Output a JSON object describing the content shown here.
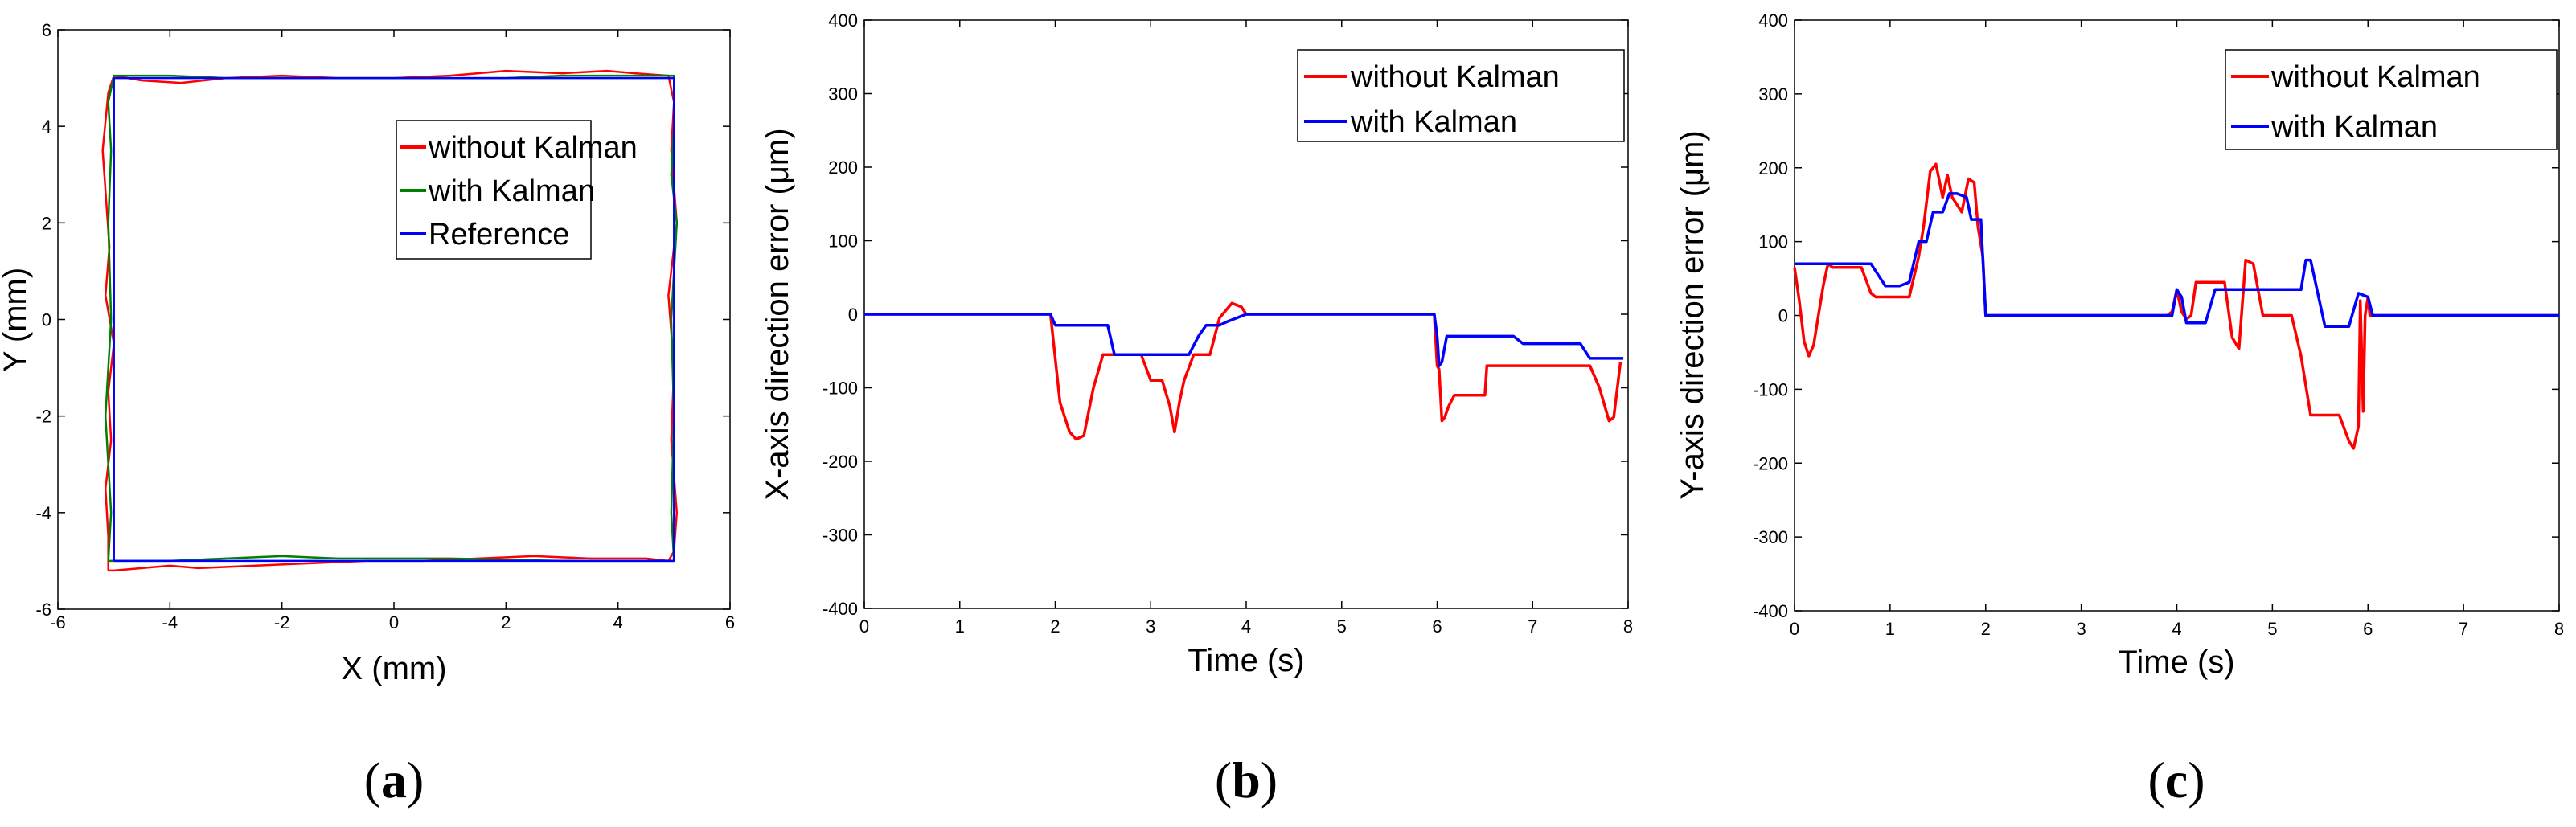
{
  "chart_data": [
    {
      "id": "a",
      "type": "line",
      "caption": "a",
      "xlabel": "X (mm)",
      "ylabel": "Y (mm)",
      "xlim": [
        -6,
        6
      ],
      "ylim": [
        -6,
        6
      ],
      "xticks": [
        -6,
        -4,
        -2,
        0,
        2,
        4,
        6
      ],
      "yticks": [
        -6,
        -4,
        -2,
        0,
        2,
        4,
        6
      ],
      "legend_position": "top-right",
      "series": [
        {
          "name": "without Kalman",
          "color": "#ff0000",
          "x": [
            -5.1,
            -5.1,
            -5.15,
            -5.05,
            -5.1,
            -5.0,
            -5.15,
            -5.08,
            -5.2,
            -5.1,
            -5.0,
            -4.5,
            -3.8,
            -3.0,
            -2.0,
            -1.0,
            0.0,
            1.0,
            2.0,
            3.0,
            3.8,
            4.3,
            4.9,
            5.0,
            4.95,
            5.05,
            4.9,
            5.0,
            4.95,
            5.05,
            5.0,
            4.9,
            4.5,
            3.5,
            2.5,
            1.5,
            0.5,
            -0.5,
            -1.5,
            -2.5,
            -3.5,
            -4.0,
            -4.5,
            -5.0,
            -5.1
          ],
          "y": [
            -5.2,
            -4.5,
            -3.5,
            -2.5,
            -1.5,
            -0.5,
            0.5,
            1.5,
            3.5,
            4.7,
            5.05,
            4.95,
            4.9,
            5.0,
            5.05,
            5.0,
            5.0,
            5.05,
            5.15,
            5.1,
            5.15,
            5.1,
            5.05,
            4.5,
            3.5,
            2.0,
            0.5,
            -1.0,
            -2.5,
            -4.0,
            -4.8,
            -5.0,
            -4.95,
            -4.95,
            -4.9,
            -4.95,
            -5.0,
            -5.0,
            -5.05,
            -5.1,
            -5.15,
            -5.1,
            -5.15,
            -5.2,
            -5.2
          ]
        },
        {
          "name": "with Kalman",
          "color": "#008000",
          "x": [
            -5.1,
            -5.05,
            -5.1,
            -5.15,
            -5.05,
            -5.1,
            -5.05,
            -5.1,
            -5.0,
            -4.0,
            -3.0,
            -2.0,
            0.0,
            2.0,
            3.0,
            4.0,
            5.0,
            5.0,
            4.95,
            5.05,
            4.95,
            5.0,
            4.95,
            5.0,
            4.0,
            3.0,
            1.0,
            -1.0,
            -2.0,
            -3.0,
            -4.0,
            -5.0,
            -5.1
          ],
          "y": [
            -5.0,
            -4.0,
            -3.0,
            -2.0,
            0.0,
            2.0,
            3.5,
            4.5,
            5.05,
            5.05,
            5.0,
            5.0,
            5.0,
            5.0,
            5.05,
            5.05,
            5.05,
            4.0,
            3.0,
            2.0,
            0.0,
            -2.0,
            -4.0,
            -5.0,
            -5.0,
            -5.0,
            -4.95,
            -4.95,
            -4.9,
            -4.95,
            -5.0,
            -5.0,
            -5.0
          ]
        },
        {
          "name": "Reference",
          "color": "#0000ff",
          "x": [
            -5,
            -5,
            5,
            5,
            -5
          ],
          "y": [
            -5,
            5,
            5,
            -5,
            -5
          ]
        }
      ]
    },
    {
      "id": "b",
      "type": "line",
      "caption": "b",
      "xlabel": "Time (s)",
      "ylabel": "X-axis direction error (μm)",
      "xlim": [
        0,
        8
      ],
      "ylim": [
        -400,
        400
      ],
      "xticks": [
        0,
        1,
        2,
        3,
        4,
        5,
        6,
        7,
        8
      ],
      "yticks": [
        -400,
        -300,
        -200,
        -100,
        0,
        100,
        200,
        300,
        400
      ],
      "legend_position": "top-right",
      "series": [
        {
          "name": "without Kalman",
          "color": "#ff0000",
          "x": [
            0,
            1.95,
            2.0,
            2.05,
            2.15,
            2.22,
            2.3,
            2.4,
            2.5,
            2.6,
            2.7,
            2.9,
            3.0,
            3.05,
            3.12,
            3.2,
            3.25,
            3.3,
            3.35,
            3.45,
            3.5,
            3.55,
            3.62,
            3.72,
            3.85,
            3.95,
            4.0,
            5.97,
            6.0,
            6.02,
            6.05,
            6.08,
            6.12,
            6.18,
            6.28,
            6.35,
            6.5,
            6.52,
            6.6,
            6.8,
            7.0,
            7.6,
            7.7,
            7.8,
            7.85,
            7.92
          ],
          "y": [
            0,
            0,
            -60,
            -120,
            -160,
            -170,
            -165,
            -100,
            -55,
            -55,
            -55,
            -55,
            -90,
            -90,
            -90,
            -125,
            -160,
            -120,
            -90,
            -55,
            -55,
            -55,
            -55,
            -5,
            15,
            10,
            0,
            0,
            -70,
            -75,
            -145,
            -140,
            -125,
            -110,
            -110,
            -110,
            -110,
            -70,
            -70,
            -70,
            -70,
            -70,
            -100,
            -145,
            -140,
            -65
          ]
        },
        {
          "name": "with Kalman",
          "color": "#0000ff",
          "x": [
            0,
            1.95,
            2.0,
            2.55,
            2.62,
            3.4,
            3.5,
            3.58,
            3.65,
            3.72,
            3.8,
            4.0,
            5.97,
            6.0,
            6.02,
            6.05,
            6.1,
            6.8,
            6.9,
            7.5,
            7.6,
            7.95
          ],
          "y": [
            0,
            0,
            -15,
            -15,
            -55,
            -55,
            -30,
            -15,
            -15,
            -15,
            -10,
            0,
            0,
            -30,
            -70,
            -65,
            -30,
            -30,
            -40,
            -40,
            -60,
            -60
          ]
        }
      ]
    },
    {
      "id": "c",
      "type": "line",
      "caption": "c",
      "xlabel": "Time (s)",
      "ylabel": "Y-axis direction error (μm)",
      "xlim": [
        0,
        8
      ],
      "ylim": [
        -400,
        400
      ],
      "xticks": [
        0,
        1,
        2,
        3,
        4,
        5,
        6,
        7,
        8
      ],
      "yticks": [
        -400,
        -300,
        -200,
        -100,
        0,
        100,
        200,
        300,
        400
      ],
      "legend_position": "top-right",
      "series": [
        {
          "name": "without Kalman",
          "color": "#ff0000",
          "x": [
            0,
            0.05,
            0.1,
            0.15,
            0.2,
            0.25,
            0.3,
            0.35,
            0.4,
            0.5,
            0.7,
            0.8,
            0.85,
            0.9,
            1.2,
            1.3,
            1.35,
            1.42,
            1.48,
            1.55,
            1.6,
            1.65,
            1.7,
            1.75,
            1.82,
            1.88,
            1.92,
            1.97,
            2.0,
            3.9,
            3.95,
            4.0,
            4.05,
            4.1,
            4.15,
            4.2,
            4.3,
            4.5,
            4.58,
            4.65,
            4.72,
            4.8,
            4.9,
            5.2,
            5.3,
            5.4,
            5.7,
            5.8,
            5.85,
            5.9,
            5.92,
            5.95,
            5.97,
            6.0,
            6.02,
            6.1,
            8.0
          ],
          "y": [
            65,
            20,
            -35,
            -55,
            -40,
            0,
            40,
            70,
            65,
            65,
            65,
            30,
            25,
            25,
            25,
            80,
            120,
            195,
            205,
            160,
            190,
            160,
            150,
            140,
            185,
            180,
            120,
            80,
            0,
            0,
            5,
            35,
            5,
            -5,
            0,
            45,
            45,
            45,
            -30,
            -45,
            75,
            70,
            0,
            0,
            -55,
            -135,
            -135,
            -170,
            -180,
            -150,
            20,
            -130,
            0,
            25,
            0,
            0,
            0
          ]
        },
        {
          "name": "with Kalman",
          "color": "#0000ff",
          "x": [
            0,
            0.8,
            0.95,
            1.05,
            1.1,
            1.2,
            1.3,
            1.38,
            1.45,
            1.55,
            1.62,
            1.7,
            1.8,
            1.85,
            1.95,
            2.0,
            3.9,
            3.95,
            4.0,
            4.05,
            4.1,
            4.3,
            4.4,
            5.3,
            5.35,
            5.4,
            5.55,
            5.8,
            5.9,
            6.0,
            6.05,
            6.1,
            8.0
          ],
          "y": [
            70,
            70,
            40,
            40,
            40,
            45,
            100,
            100,
            140,
            140,
            165,
            165,
            160,
            130,
            130,
            0,
            0,
            0,
            35,
            25,
            -10,
            -10,
            35,
            35,
            75,
            75,
            -15,
            -15,
            30,
            25,
            0,
            0,
            0
          ]
        }
      ]
    }
  ]
}
